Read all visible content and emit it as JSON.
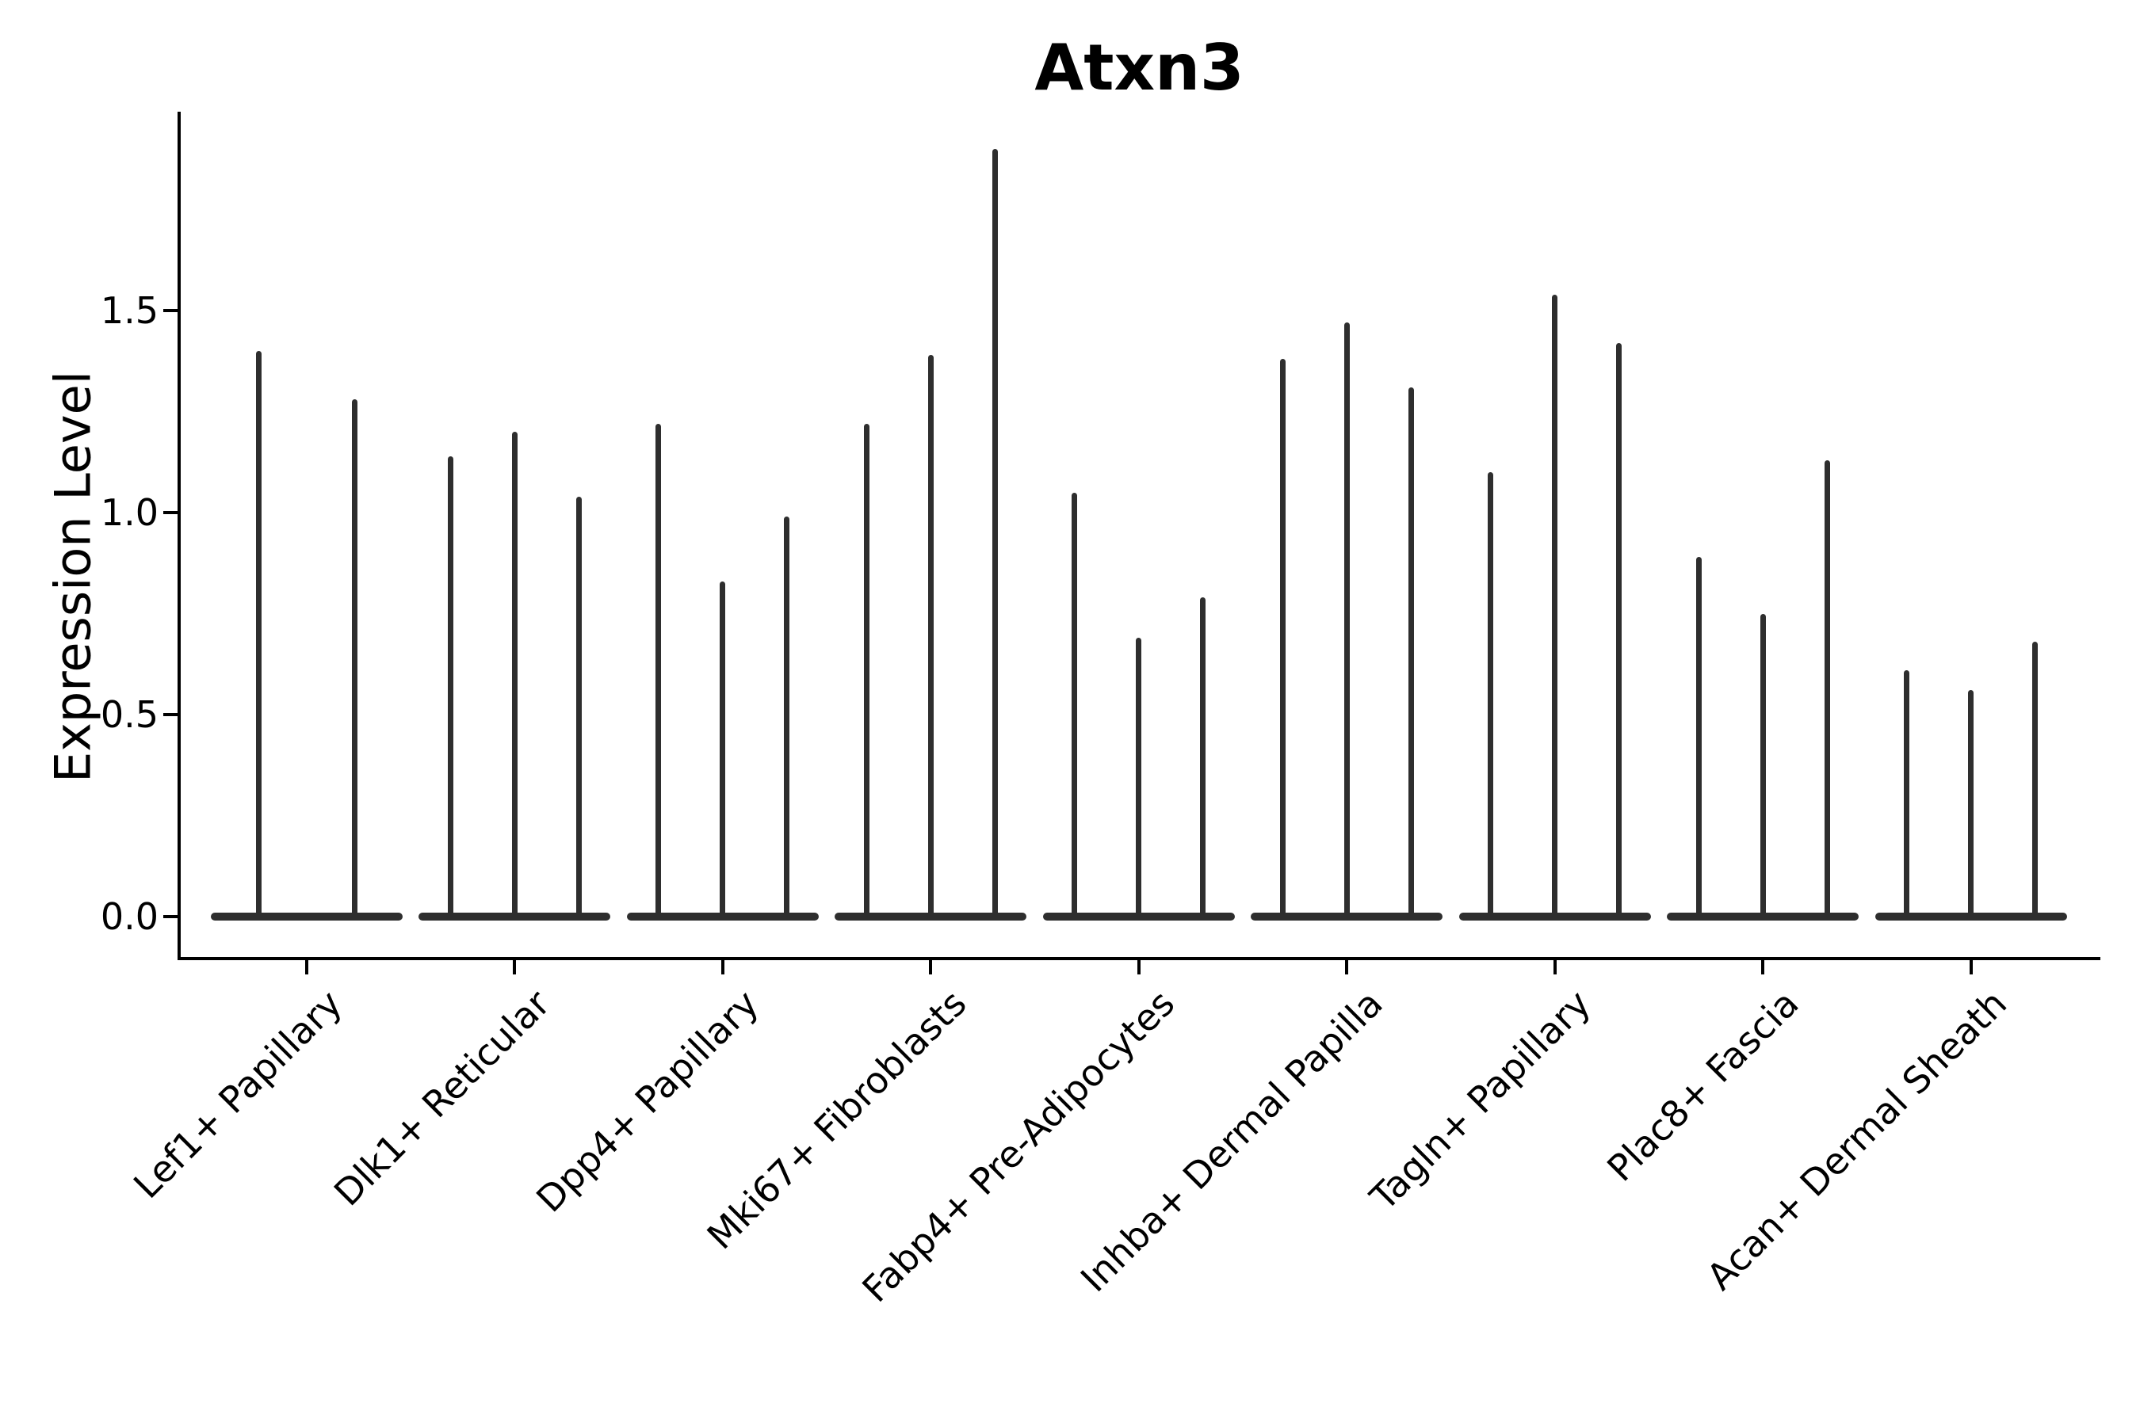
{
  "chart_data": {
    "type": "violin",
    "title": "Atxn3",
    "ylabel": "Expression Level",
    "xlabel": "",
    "ylim": [
      -0.1,
      1.99
    ],
    "yticks": [
      {
        "value": 0.0,
        "label": "0.0"
      },
      {
        "value": 0.5,
        "label": "0.5"
      },
      {
        "value": 1.0,
        "label": "1.0"
      },
      {
        "value": 1.5,
        "label": "1.5"
      }
    ],
    "grid": false,
    "legend_position": "none",
    "violin_color": "#2e2e2e",
    "axis_color": "#000000",
    "background_color": "#ffffff",
    "groups": [
      {
        "category": "Lef1+ Papillary",
        "violin_max_values": [
          1.4,
          1.28
        ]
      },
      {
        "category": "Dlk1+ Reticular",
        "violin_max_values": [
          1.14,
          1.2,
          1.04
        ]
      },
      {
        "category": "Dpp4+ Papillary",
        "violin_max_values": [
          1.22,
          0.83,
          0.99
        ]
      },
      {
        "category": "Mki67+ Fibroblasts",
        "violin_max_values": [
          1.22,
          1.39,
          1.9
        ]
      },
      {
        "category": "Fabp4+ Pre-Adipocytes",
        "violin_max_values": [
          1.05,
          0.69,
          0.79
        ]
      },
      {
        "category": "Inhba+ Dermal Papilla",
        "violin_max_values": [
          1.38,
          1.47,
          1.31
        ]
      },
      {
        "category": "Tagln+ Papillary",
        "violin_max_values": [
          1.1,
          1.54,
          1.42
        ]
      },
      {
        "category": "Plac8+ Fascia",
        "violin_max_values": [
          0.89,
          0.75,
          1.13
        ]
      },
      {
        "category": "Acan+ Dermal Sheath",
        "violin_max_values": [
          0.61,
          0.56,
          0.68
        ]
      }
    ]
  }
}
